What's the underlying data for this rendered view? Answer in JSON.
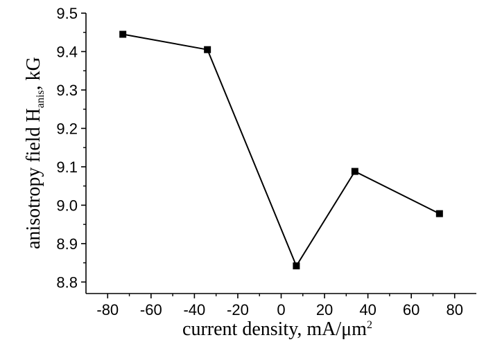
{
  "chart_data": {
    "type": "line",
    "xlabel": {
      "main": "current density, mA/μm",
      "sup": "2"
    },
    "ylabel": {
      "prefix": "anisotropy field H",
      "sub": "anis",
      "suffix": ", kG"
    },
    "x": [
      -73,
      -34,
      7,
      34,
      73
    ],
    "series": [
      {
        "values": [
          9.445,
          9.405,
          8.842,
          9.088,
          8.978
        ]
      }
    ],
    "xlim": [
      -90,
      90
    ],
    "ylim": [
      8.77,
      9.5
    ],
    "x_ticks": [
      -80,
      -60,
      -40,
      -20,
      0,
      20,
      40,
      60,
      80
    ],
    "y_ticks": [
      8.8,
      8.9,
      9.0,
      9.1,
      9.2,
      9.3,
      9.4,
      9.5
    ],
    "x_tick_labels": [
      "-80",
      "-60",
      "-40",
      "-20",
      "0",
      "20",
      "40",
      "60",
      "80"
    ],
    "y_tick_labels": [
      "8.8",
      "8.9",
      "9.0",
      "9.1",
      "9.2",
      "9.3",
      "9.4",
      "9.5"
    ],
    "grid": false,
    "marker": "square",
    "color": "#000000"
  }
}
